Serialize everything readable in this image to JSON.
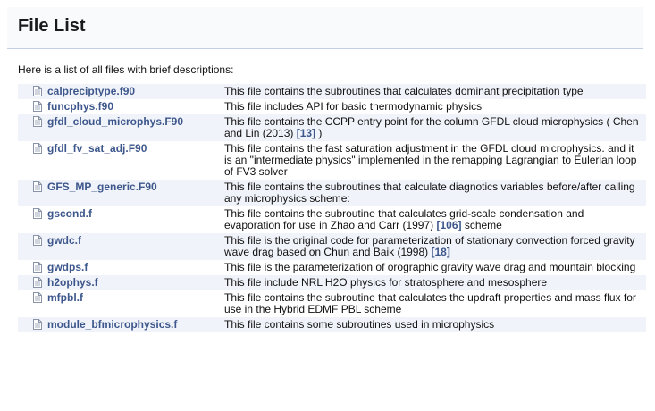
{
  "page": {
    "title": "File List",
    "intro": "Here is a list of all files with brief descriptions:"
  },
  "files": [
    {
      "name": "calpreciptype.f90",
      "desc": "This file contains the subroutines that calculates dominant precipitation type"
    },
    {
      "name": "funcphys.f90",
      "desc": "This file includes API for basic thermodynamic physics"
    },
    {
      "name": "gfdl_cloud_microphys.F90",
      "desc_before": "This file contains the CCPP entry point for the column GFDL cloud microphysics ( Chen and Lin (2013) ",
      "ref": "[13]",
      "desc_after": " )"
    },
    {
      "name": "gfdl_fv_sat_adj.F90",
      "desc": "This file contains the fast saturation adjustment in the GFDL cloud microphysics. and it is an \"intermediate physics\" implemented in the remapping Lagrangian to Eulerian loop of FV3 solver"
    },
    {
      "name": "GFS_MP_generic.F90",
      "desc": "This file contains the subroutines that calculate diagnotics variables before/after calling any microphysics scheme:"
    },
    {
      "name": "gscond.f",
      "desc_before": "This file contains the subroutine that calculates grid-scale condensation and evaporation for use in Zhao and Carr (1997) ",
      "ref": "[106]",
      "desc_after": " scheme"
    },
    {
      "name": "gwdc.f",
      "desc_before": "This file is the original code for parameterization of stationary convection forced gravity wave drag based on Chun and Baik (1998) ",
      "ref": "[18]",
      "desc_after": ""
    },
    {
      "name": "gwdps.f",
      "desc": "This file is the parameterization of orographic gravity wave drag and mountain blocking"
    },
    {
      "name": "h2ophys.f",
      "desc": "This file include NRL H2O physics for stratosphere and mesosphere"
    },
    {
      "name": "mfpbl.f",
      "desc": "This file contains the subroutine that calculates the updraft properties and mass flux for use in the Hybrid EDMF PBL scheme"
    },
    {
      "name": "module_bfmicrophysics.f",
      "desc": "This file contains some subroutines used in microphysics"
    }
  ]
}
